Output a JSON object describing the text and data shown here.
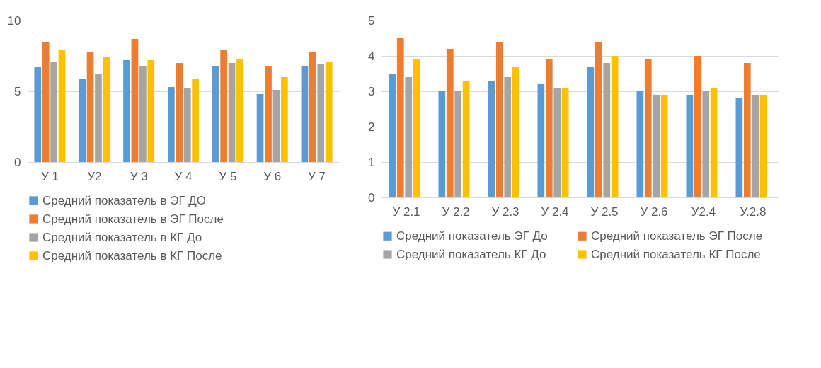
{
  "chart_data": [
    {
      "type": "bar",
      "categories": [
        "У 1",
        "У2",
        "У 3",
        "У 4",
        "У 5",
        "У 6",
        "У 7"
      ],
      "ylim": [
        0,
        10
      ],
      "yticks": [
        0,
        5,
        10
      ],
      "grid": "y",
      "legend": "bottom",
      "series": [
        {
          "name": "Средний показатель в ЭГ ДО",
          "color": "#5b9bd5",
          "values": [
            6.7,
            5.9,
            7.2,
            5.3,
            6.8,
            4.8,
            6.8
          ]
        },
        {
          "name": "Средний показатель в ЭГ После",
          "color": "#ed7d31",
          "values": [
            8.5,
            7.8,
            8.7,
            7.0,
            7.9,
            6.8,
            7.8
          ]
        },
        {
          "name": "Средний показатель в КГ До",
          "color": "#a5a5a5",
          "values": [
            7.1,
            6.2,
            6.8,
            5.2,
            7.0,
            5.1,
            6.9
          ]
        },
        {
          "name": "Средний показатель в КГ После",
          "color": "#ffc000",
          "values": [
            7.9,
            7.4,
            7.2,
            5.9,
            7.3,
            6.0,
            7.1
          ]
        }
      ]
    },
    {
      "type": "bar",
      "categories": [
        "У 2.1",
        "У 2.2",
        "У 2.3",
        "У 2.4",
        "У 2.5",
        "У 2.6",
        "У2.4",
        "У.2.8"
      ],
      "ylim": [
        0,
        5
      ],
      "yticks": [
        0,
        1,
        2,
        3,
        4,
        5
      ],
      "grid": "y",
      "legend": "bottom",
      "series": [
        {
          "name": "Средний показатель ЭГ До",
          "color": "#5b9bd5",
          "values": [
            3.5,
            3.0,
            3.3,
            3.2,
            3.7,
            3.0,
            2.9,
            2.8
          ]
        },
        {
          "name": "Средний показатель ЭГ После",
          "color": "#ed7d31",
          "values": [
            4.5,
            4.2,
            4.4,
            3.9,
            4.4,
            3.9,
            4.0,
            3.8
          ]
        },
        {
          "name": "Средний показатель КГ До",
          "color": "#a5a5a5",
          "values": [
            3.4,
            3.0,
            3.4,
            3.1,
            3.8,
            2.9,
            3.0,
            2.9
          ]
        },
        {
          "name": "Средний показатель КГ После",
          "color": "#ffc000",
          "values": [
            3.9,
            3.3,
            3.7,
            3.1,
            4.0,
            2.9,
            3.1,
            2.9
          ]
        }
      ]
    }
  ]
}
